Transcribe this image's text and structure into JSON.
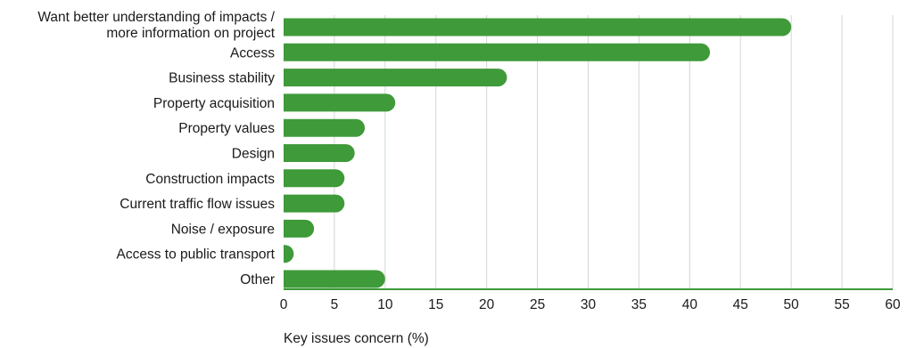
{
  "chart_data": {
    "type": "bar",
    "orientation": "horizontal",
    "categories": [
      [
        "Want better understanding of impacts /",
        "more information on project"
      ],
      [
        "Access"
      ],
      [
        "Business stability"
      ],
      [
        "Property acquisition"
      ],
      [
        "Property values"
      ],
      [
        "Design"
      ],
      [
        "Construction impacts"
      ],
      [
        "Current traffic flow issues"
      ],
      [
        "Noise / exposure"
      ],
      [
        "Access to public transport"
      ],
      [
        "Other"
      ]
    ],
    "values": [
      50,
      42,
      22,
      11,
      8,
      7,
      6,
      6,
      3,
      1,
      10
    ],
    "xlabel": "Key issues concern (%)",
    "ylabel": "",
    "xlim": [
      0,
      60
    ],
    "xticks": [
      0,
      5,
      10,
      15,
      20,
      25,
      30,
      35,
      40,
      45,
      50,
      55,
      60
    ],
    "grid": "vertical",
    "colors": {
      "bar": "#3f9a3a",
      "axis": "#3f9a3a",
      "grid": "#cfd8d5",
      "text": "#1a1a1a"
    }
  }
}
